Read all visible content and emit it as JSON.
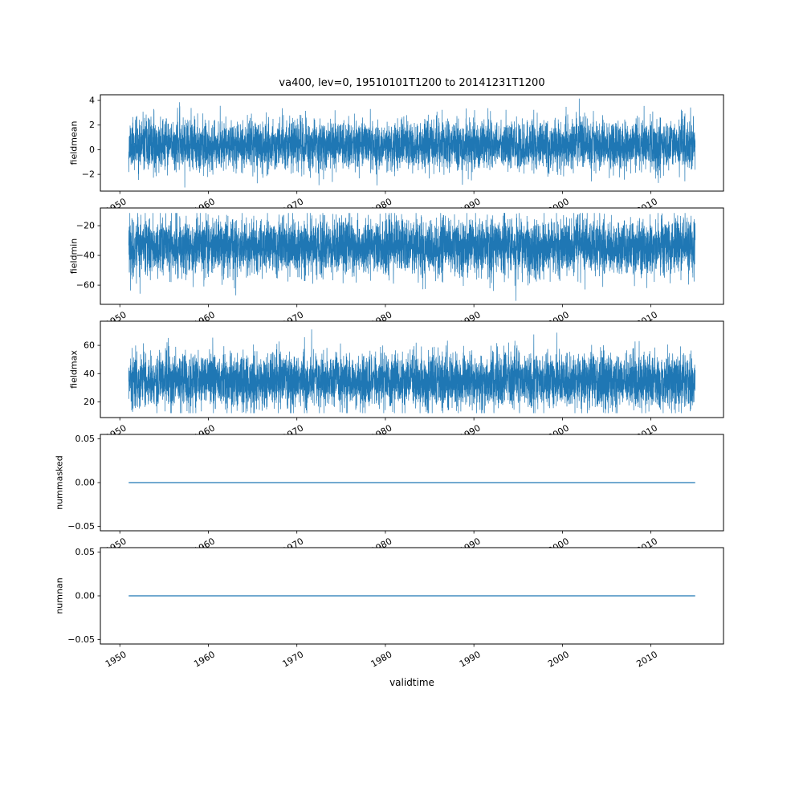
{
  "figure": {
    "line_color": "#1f77b4",
    "axis_color": "#000000",
    "background": "#ffffff"
  },
  "chart_data": {
    "type": "line",
    "title": "va400, lev=0, 19510101T1200 to 20141231T1200",
    "xlabel": "validtime",
    "x_range": [
      1951.0,
      2015.0
    ],
    "xlim": [
      1947.8,
      2018.2
    ],
    "xticks": [
      1950,
      1960,
      1970,
      1980,
      1990,
      2000,
      2010
    ],
    "grid": false,
    "legend": "none",
    "subplots": [
      {
        "ylabel": "fieldmean",
        "ylim": [
          -3.36,
          4.46
        ],
        "yticks": [
          -2,
          0,
          2,
          4
        ],
        "tick_decimals": 0,
        "series": {
          "kind": "noise",
          "mean": 0.4,
          "std": 1.0,
          "min": -3.1,
          "max": 4.15,
          "seed": 11,
          "points": 6000
        }
      },
      {
        "ylabel": "fieldmin",
        "ylim": [
          -72.9,
          -8.1
        ],
        "yticks": [
          -60,
          -40,
          -20
        ],
        "tick_decimals": 0,
        "series": {
          "kind": "noise",
          "mean": -34,
          "std": 9.5,
          "min": -70.5,
          "max": -11.5,
          "seed": 22,
          "points": 6000
        }
      },
      {
        "ylabel": "fieldmax",
        "ylim": [
          8.9,
          77.1
        ],
        "yticks": [
          20,
          40,
          60
        ],
        "tick_decimals": 0,
        "series": {
          "kind": "noise",
          "mean": 35,
          "std": 9.5,
          "min": 12,
          "max": 74.5,
          "seed": 33,
          "points": 6000
        }
      },
      {
        "ylabel": "nummasked",
        "ylim": [
          -0.055,
          0.055
        ],
        "yticks": [
          -0.05,
          0,
          0.05
        ],
        "tick_decimals": 2,
        "series": {
          "kind": "constant",
          "value": 0
        }
      },
      {
        "ylabel": "numnan",
        "ylim": [
          -0.055,
          0.055
        ],
        "yticks": [
          -0.05,
          0,
          0.05
        ],
        "tick_decimals": 2,
        "series": {
          "kind": "constant",
          "value": 0
        }
      }
    ]
  }
}
